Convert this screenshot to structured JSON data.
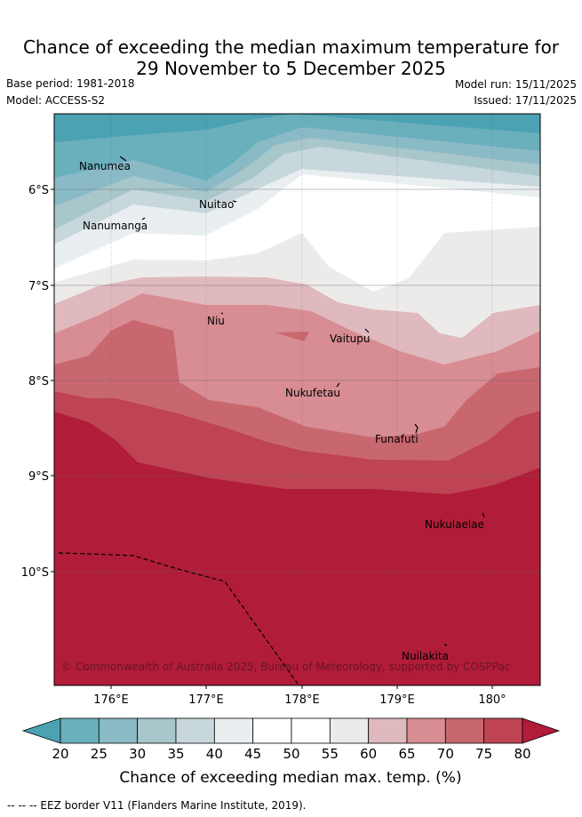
{
  "title": {
    "line1": "Chance of exceeding the median maximum temperature for",
    "line2": "29 November to 5 December 2025"
  },
  "meta": {
    "base_period": "Base period: 1981-2018",
    "model": "Model: ACCESS-S2",
    "model_run": "Model run: 15/11/2025",
    "issued": "Issued: 17/11/2025"
  },
  "map": {
    "lat_ticks": [
      "6°S",
      "7°S",
      "8°S",
      "9°S",
      "10°S"
    ],
    "lon_ticks": [
      "176°E",
      "177°E",
      "178°E",
      "179°E",
      "180°"
    ],
    "islands": [
      "Nanumea",
      "Nuitao",
      "Nanumanga",
      "Niu",
      "Vaitupu",
      "Nukufetau",
      "Funafuti",
      "Nukulaelae",
      "Nuilakita"
    ],
    "copyright": "© Commonwealth of Australia 2025, Bureau of Meteorology, supported by COSPPac"
  },
  "colorbar": {
    "labels": [
      "20",
      "25",
      "30",
      "35",
      "40",
      "45",
      "50",
      "55",
      "60",
      "65",
      "70",
      "75",
      "80"
    ],
    "colors": [
      "#4aa2b3",
      "#6aafbc",
      "#8bbac7",
      "#a8c7cb",
      "#c8d7dc",
      "#e9eef1",
      "#ffffff",
      "#ffffff",
      "#edebea",
      "#dfb9bd",
      "#d78d93",
      "#c9676f",
      "#bf4453",
      "#b11c38"
    ],
    "title": "Chance of exceeding median max. temp. (%)"
  },
  "footer": {
    "legend": "-- -- -- EEZ border V11 (Flanders Marine Institute, 2019)."
  }
}
